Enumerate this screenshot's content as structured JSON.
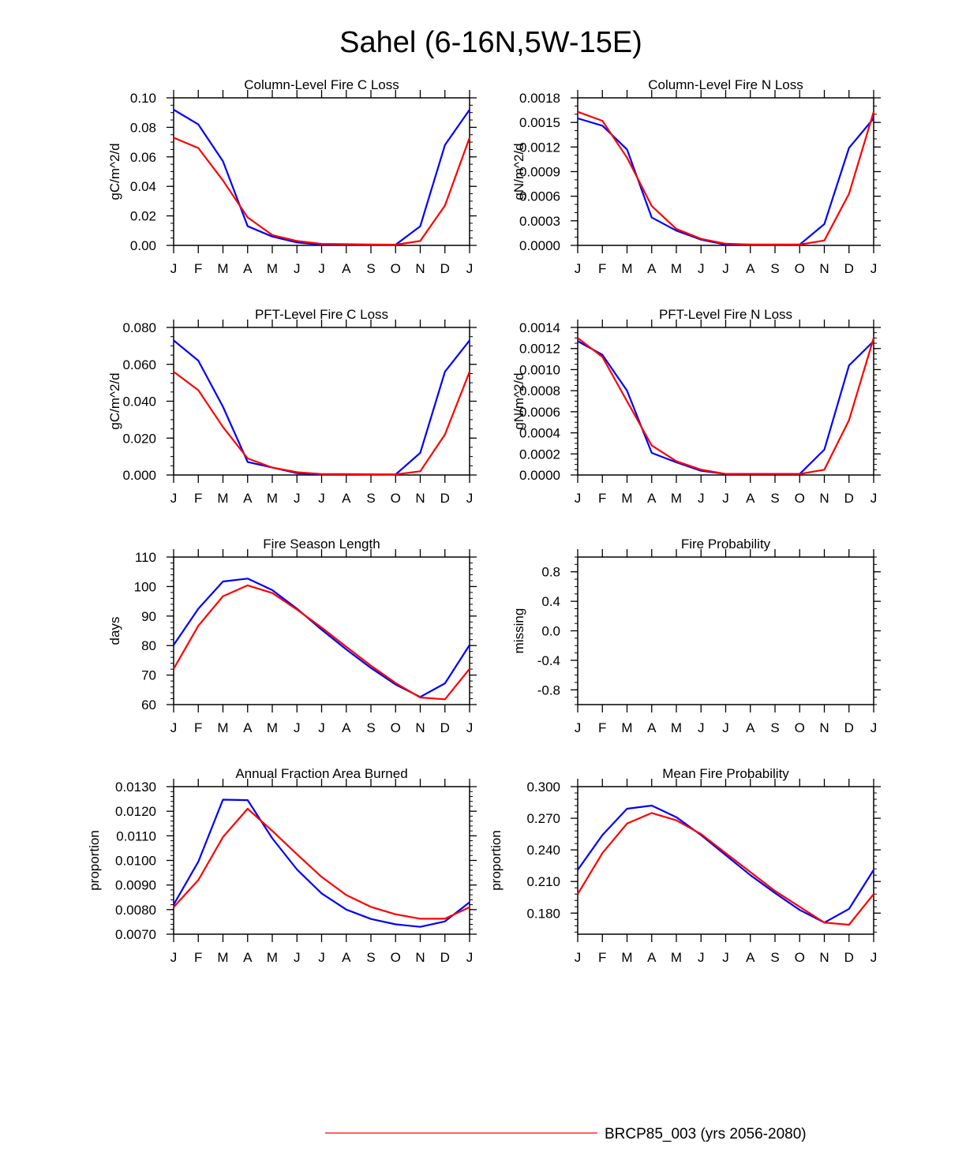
{
  "page_title": "Sahel (6-16N,5W-15E)",
  "legend": {
    "label": "BRCP85_003 (yrs 2056-2080)",
    "color": "#ff0000"
  },
  "series_colors": {
    "red": "#ff0000",
    "blue": "#0000ff"
  },
  "months": [
    "J",
    "F",
    "M",
    "A",
    "M",
    "J",
    "J",
    "A",
    "S",
    "O",
    "N",
    "D",
    "J"
  ],
  "chart_data": [
    {
      "type": "line",
      "title": "Column-Level Fire C Loss",
      "ylabel": "gC/m^2/d",
      "ylim": [
        0,
        0.1
      ],
      "yticks": [
        0.0,
        0.02,
        0.04,
        0.06,
        0.08,
        0.1
      ],
      "ytick_labels": [
        "0.00",
        "0.02",
        "0.04",
        "0.06",
        "0.08",
        "0.10"
      ],
      "yminor": 0.005,
      "series": [
        {
          "name": "blue",
          "values": [
            0.092,
            0.082,
            0.057,
            0.013,
            0.006,
            0.002,
            0.0005,
            0.0005,
            0.0005,
            0.0005,
            0.013,
            0.068,
            0.092
          ]
        },
        {
          "name": "red",
          "values": [
            0.073,
            0.066,
            0.044,
            0.019,
            0.007,
            0.003,
            0.001,
            0.0008,
            0.0006,
            0.0005,
            0.003,
            0.027,
            0.073
          ]
        }
      ]
    },
    {
      "type": "line",
      "title": "Column-Level Fire N Loss",
      "ylabel": "gN/m^2/d",
      "ylim": [
        0,
        0.0018
      ],
      "yticks": [
        0,
        0.0003,
        0.0006,
        0.0009,
        0.0012,
        0.0015,
        0.0018
      ],
      "ytick_labels": [
        "0.0000",
        "0.0003",
        "0.0006",
        "0.0009",
        "0.0012",
        "0.0015",
        "0.0018"
      ],
      "yminor": 0.0001,
      "series": [
        {
          "name": "blue",
          "values": [
            0.00155,
            0.00146,
            0.00117,
            0.00034,
            0.00018,
            7e-05,
            1e-05,
            1e-05,
            1e-05,
            1e-05,
            0.00026,
            0.00119,
            0.00155
          ]
        },
        {
          "name": "red",
          "values": [
            0.00163,
            0.00152,
            0.00107,
            0.00048,
            0.0002,
            8e-05,
            2e-05,
            1e-05,
            1e-05,
            1e-05,
            6e-05,
            0.00063,
            0.00163
          ]
        }
      ]
    },
    {
      "type": "line",
      "title": "PFT-Level Fire C Loss",
      "ylabel": "gC/m^2/d",
      "ylim": [
        0,
        0.08
      ],
      "yticks": [
        0,
        0.02,
        0.04,
        0.06,
        0.08
      ],
      "ytick_labels": [
        "0.000",
        "0.020",
        "0.040",
        "0.060",
        "0.080"
      ],
      "yminor": 0.005,
      "series": [
        {
          "name": "blue",
          "values": [
            0.073,
            0.062,
            0.037,
            0.007,
            0.004,
            0.001,
            0.0003,
            0.0003,
            0.0003,
            0.0003,
            0.012,
            0.056,
            0.073
          ]
        },
        {
          "name": "red",
          "values": [
            0.056,
            0.046,
            0.026,
            0.009,
            0.004,
            0.0015,
            0.0005,
            0.0005,
            0.0004,
            0.0003,
            0.002,
            0.022,
            0.056
          ]
        }
      ]
    },
    {
      "type": "line",
      "title": "PFT-Level Fire N Loss",
      "ylabel": "gN/m^2/d",
      "ylim": [
        0,
        0.0014
      ],
      "yticks": [
        0,
        0.0002,
        0.0004,
        0.0006,
        0.0008,
        0.001,
        0.0012,
        0.0014
      ],
      "ytick_labels": [
        "0.0000",
        "0.0002",
        "0.0004",
        "0.0006",
        "0.0008",
        "0.0010",
        "0.0012",
        "0.0014"
      ],
      "yminor": 5e-05,
      "series": [
        {
          "name": "blue",
          "values": [
            0.00127,
            0.00114,
            0.0008,
            0.00021,
            0.00012,
            4e-05,
            1e-05,
            1e-05,
            1e-05,
            1e-05,
            0.00024,
            0.00104,
            0.00127
          ]
        },
        {
          "name": "red",
          "values": [
            0.0013,
            0.00112,
            0.0007,
            0.00028,
            0.00013,
            5e-05,
            1e-05,
            1e-05,
            1e-05,
            1e-05,
            5e-05,
            0.00052,
            0.0013
          ]
        }
      ]
    },
    {
      "type": "line",
      "title": "Fire Season Length",
      "ylabel": "days",
      "ylim": [
        60,
        110
      ],
      "yticks": [
        60,
        70,
        80,
        90,
        100,
        110
      ],
      "ytick_labels": [
        "60",
        "70",
        "80",
        "90",
        "100",
        "110"
      ],
      "yminor": 2,
      "series": [
        {
          "name": "blue",
          "values": [
            80.2,
            92.5,
            101.7,
            102.7,
            98.8,
            92.5,
            85.4,
            78.7,
            72.4,
            66.8,
            62.6,
            67.2,
            80.2
          ]
        },
        {
          "name": "red",
          "values": [
            72.1,
            86.7,
            96.7,
            100.4,
            97.8,
            92.2,
            86.1,
            79.6,
            73.2,
            67.3,
            62.4,
            61.8,
            72.1
          ]
        }
      ]
    },
    {
      "type": "line",
      "title": "Fire Probability",
      "ylabel": "missing",
      "ylim": [
        -1,
        1
      ],
      "yticks": [
        -0.8,
        -0.4,
        0.0,
        0.4,
        0.8
      ],
      "ytick_labels": [
        "-0.8",
        "-0.4",
        "0.0",
        "0.4",
        "0.8"
      ],
      "yminor": 0.1,
      "series": []
    },
    {
      "type": "line",
      "title": "Annual Fraction Area Burned",
      "ylabel": "proportion",
      "ylim": [
        0.007,
        0.013
      ],
      "yticks": [
        0.007,
        0.008,
        0.009,
        0.01,
        0.011,
        0.012,
        0.013
      ],
      "ytick_labels": [
        "0.0070",
        "0.0080",
        "0.0090",
        "0.0100",
        "0.0110",
        "0.0120",
        "0.0130"
      ],
      "yminor": 0.0002,
      "series": [
        {
          "name": "blue",
          "values": [
            0.0082,
            0.00995,
            0.01247,
            0.01245,
            0.0109,
            0.00963,
            0.00866,
            0.008,
            0.00762,
            0.0074,
            0.0073,
            0.00752,
            0.0083
          ]
        },
        {
          "name": "red",
          "values": [
            0.0081,
            0.0092,
            0.01095,
            0.0121,
            0.0112,
            0.01025,
            0.00933,
            0.00859,
            0.00811,
            0.00781,
            0.00763,
            0.00763,
            0.0081
          ]
        }
      ]
    },
    {
      "type": "line",
      "title": "Mean Fire Probability",
      "ylabel": "proportion",
      "ylim": [
        0.16,
        0.3
      ],
      "yticks": [
        0.18,
        0.21,
        0.24,
        0.27,
        0.3
      ],
      "ytick_labels": [
        "0.180",
        "0.210",
        "0.240",
        "0.270",
        "0.300"
      ],
      "yminor": 0.006,
      "series": [
        {
          "name": "blue",
          "values": [
            0.221,
            0.254,
            0.279,
            0.282,
            0.271,
            0.254,
            0.235,
            0.216,
            0.199,
            0.183,
            0.171,
            0.184,
            0.221
          ]
        },
        {
          "name": "red",
          "values": [
            0.198,
            0.237,
            0.265,
            0.275,
            0.268,
            0.255,
            0.237,
            0.219,
            0.201,
            0.186,
            0.171,
            0.169,
            0.198
          ]
        }
      ]
    }
  ]
}
